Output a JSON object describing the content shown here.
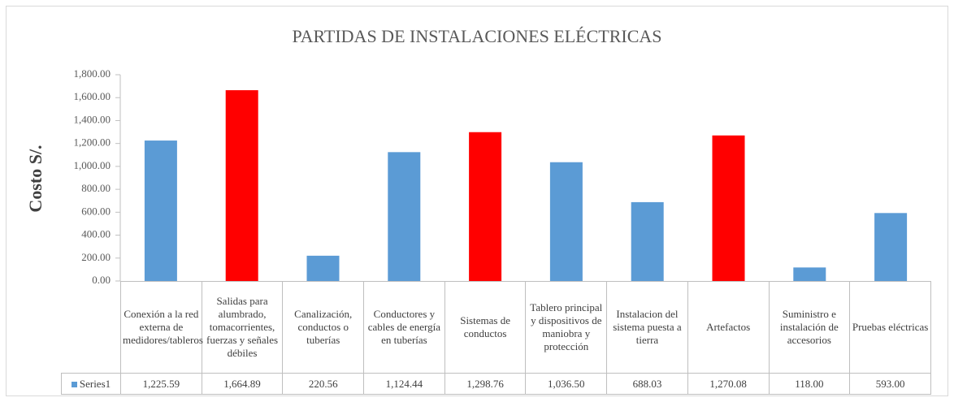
{
  "chart_data": {
    "type": "bar",
    "title": "PARTIDAS DE INSTALACIONES ELÉCTRICAS",
    "y_axis_label": "Costo S/.",
    "categories": [
      "Conexión a la red externa de medidores/tableros",
      "Salidas para alumbrado, tomacorrientes, fuerzas y señales débiles",
      "Canalización, conductos o tuberías",
      "Conductores y cables de energía en tuberías",
      "Sistemas de conductos",
      "Tablero principal y dispositivos de maniobra y protección",
      "Instalacion del sistema puesta a tierra",
      "Artefactos",
      "Suministro e instalación de accesorios",
      "Pruebas eléctricas"
    ],
    "series": [
      {
        "name": "Series1",
        "color": "#5b9bd5",
        "values": [
          1225.59,
          1664.89,
          220.56,
          1124.44,
          1298.76,
          1036.5,
          688.03,
          1270.08,
          118.0,
          593.0
        ],
        "value_labels": [
          "1,225.59",
          "1,664.89",
          "220.56",
          "1,124.44",
          "1,298.76",
          "1,036.50",
          "688.03",
          "1,270.08",
          "118.00",
          "593.00"
        ],
        "colors": [
          "#5b9bd5",
          "#ff0000",
          "#5b9bd5",
          "#5b9bd5",
          "#ff0000",
          "#5b9bd5",
          "#5b9bd5",
          "#ff0000",
          "#5b9bd5",
          "#5b9bd5"
        ]
      }
    ],
    "ylim": [
      0,
      1800
    ],
    "yticks": [
      {
        "value": 0,
        "label": "0.00"
      },
      {
        "value": 200,
        "label": "200.00"
      },
      {
        "value": 400,
        "label": "400.00"
      },
      {
        "value": 600,
        "label": "600.00"
      },
      {
        "value": 800,
        "label": "800.00"
      },
      {
        "value": 1000,
        "label": "1,000.00"
      },
      {
        "value": 1200,
        "label": "1,200.00"
      },
      {
        "value": 1400,
        "label": "1,400.00"
      },
      {
        "value": 1600,
        "label": "1,600.00"
      },
      {
        "value": 1800,
        "label": "1,800.00"
      }
    ],
    "grid": false
  }
}
